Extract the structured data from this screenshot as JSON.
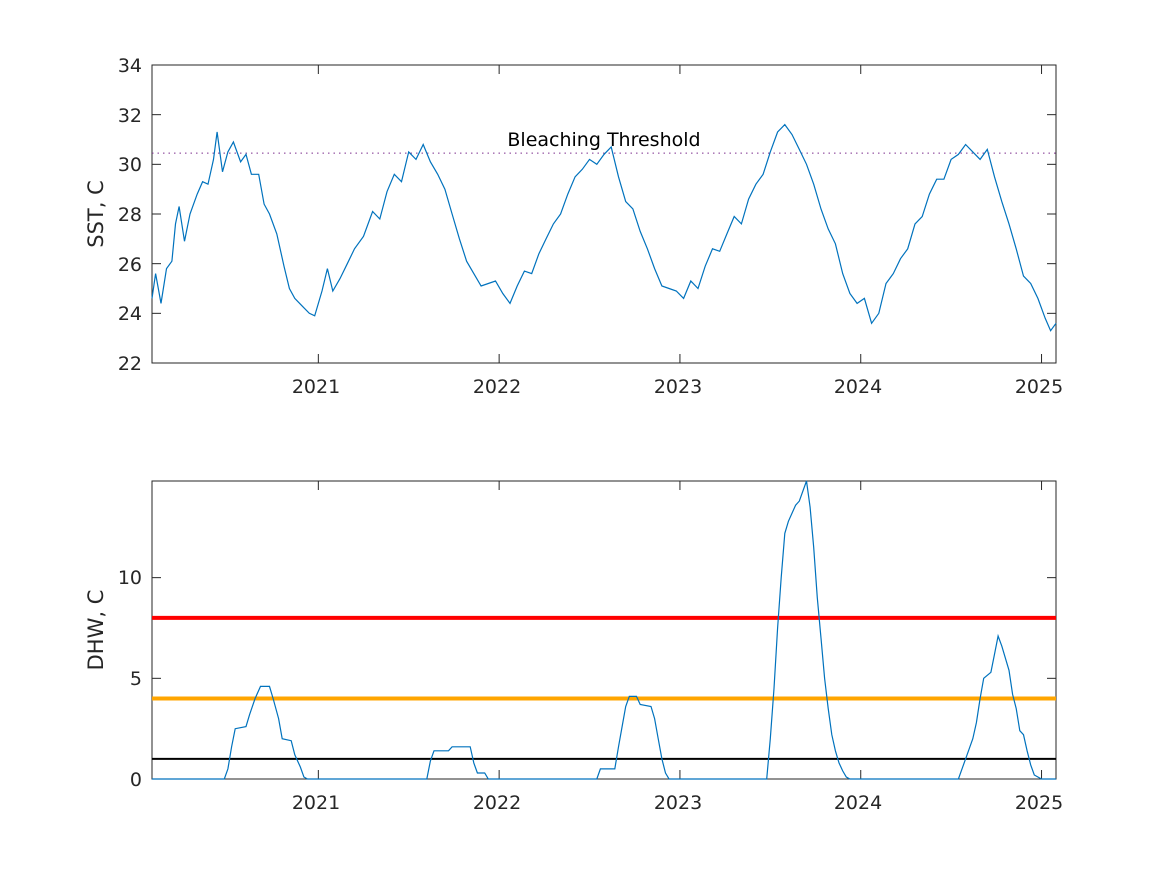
{
  "chart_data": [
    {
      "type": "line",
      "ylabel": "SST, C",
      "xlim": [
        2020.08,
        2025.08
      ],
      "ylim": [
        22,
        34
      ],
      "x_ticks": [
        2021,
        2022,
        2023,
        2024,
        2025
      ],
      "x_tick_labels": [
        "2021",
        "2022",
        "2023",
        "2024",
        "2025"
      ],
      "y_ticks": [
        22,
        24,
        26,
        28,
        30,
        32,
        34
      ],
      "y_tick_labels": [
        "22",
        "24",
        "26",
        "28",
        "30",
        "32",
        "34"
      ],
      "grid": false,
      "series": [
        {
          "color": "#0072BD",
          "points": [
            [
              2020.08,
              24.6
            ],
            [
              2020.1,
              25.6
            ],
            [
              2020.13,
              24.4
            ],
            [
              2020.16,
              25.8
            ],
            [
              2020.19,
              26.1
            ],
            [
              2020.21,
              27.6
            ],
            [
              2020.23,
              28.3
            ],
            [
              2020.26,
              26.9
            ],
            [
              2020.29,
              28.0
            ],
            [
              2020.33,
              28.8
            ],
            [
              2020.36,
              29.3
            ],
            [
              2020.39,
              29.2
            ],
            [
              2020.42,
              30.2
            ],
            [
              2020.44,
              31.3
            ],
            [
              2020.47,
              29.7
            ],
            [
              2020.5,
              30.5
            ],
            [
              2020.53,
              30.9
            ],
            [
              2020.57,
              30.1
            ],
            [
              2020.6,
              30.4
            ],
            [
              2020.63,
              29.6
            ],
            [
              2020.67,
              29.6
            ],
            [
              2020.7,
              28.4
            ],
            [
              2020.73,
              28.0
            ],
            [
              2020.77,
              27.2
            ],
            [
              2020.81,
              25.9
            ],
            [
              2020.84,
              25.0
            ],
            [
              2020.87,
              24.6
            ],
            [
              2020.91,
              24.3
            ],
            [
              2020.95,
              24.0
            ],
            [
              2020.98,
              23.9
            ],
            [
              2021.02,
              24.9
            ],
            [
              2021.05,
              25.8
            ],
            [
              2021.08,
              24.9
            ],
            [
              2021.12,
              25.4
            ],
            [
              2021.16,
              26.0
            ],
            [
              2021.2,
              26.6
            ],
            [
              2021.25,
              27.1
            ],
            [
              2021.3,
              28.1
            ],
            [
              2021.34,
              27.8
            ],
            [
              2021.38,
              28.9
            ],
            [
              2021.42,
              29.6
            ],
            [
              2021.46,
              29.3
            ],
            [
              2021.5,
              30.5
            ],
            [
              2021.54,
              30.2
            ],
            [
              2021.58,
              30.8
            ],
            [
              2021.62,
              30.1
            ],
            [
              2021.66,
              29.6
            ],
            [
              2021.7,
              29.0
            ],
            [
              2021.74,
              28.0
            ],
            [
              2021.78,
              27.0
            ],
            [
              2021.82,
              26.1
            ],
            [
              2021.86,
              25.6
            ],
            [
              2021.9,
              25.1
            ],
            [
              2021.94,
              25.2
            ],
            [
              2021.98,
              25.3
            ],
            [
              2022.02,
              24.8
            ],
            [
              2022.06,
              24.4
            ],
            [
              2022.1,
              25.1
            ],
            [
              2022.14,
              25.7
            ],
            [
              2022.18,
              25.6
            ],
            [
              2022.22,
              26.4
            ],
            [
              2022.26,
              27.0
            ],
            [
              2022.3,
              27.6
            ],
            [
              2022.34,
              28.0
            ],
            [
              2022.38,
              28.8
            ],
            [
              2022.42,
              29.5
            ],
            [
              2022.46,
              29.8
            ],
            [
              2022.5,
              30.2
            ],
            [
              2022.54,
              30.0
            ],
            [
              2022.58,
              30.4
            ],
            [
              2022.62,
              30.7
            ],
            [
              2022.66,
              29.5
            ],
            [
              2022.7,
              28.5
            ],
            [
              2022.74,
              28.2
            ],
            [
              2022.78,
              27.3
            ],
            [
              2022.82,
              26.6
            ],
            [
              2022.86,
              25.8
            ],
            [
              2022.9,
              25.1
            ],
            [
              2022.94,
              25.0
            ],
            [
              2022.98,
              24.9
            ],
            [
              2023.02,
              24.6
            ],
            [
              2023.06,
              25.3
            ],
            [
              2023.1,
              25.0
            ],
            [
              2023.14,
              25.9
            ],
            [
              2023.18,
              26.6
            ],
            [
              2023.22,
              26.5
            ],
            [
              2023.26,
              27.2
            ],
            [
              2023.3,
              27.9
            ],
            [
              2023.34,
              27.6
            ],
            [
              2023.38,
              28.6
            ],
            [
              2023.42,
              29.2
            ],
            [
              2023.46,
              29.6
            ],
            [
              2023.5,
              30.5
            ],
            [
              2023.54,
              31.3
            ],
            [
              2023.58,
              31.6
            ],
            [
              2023.62,
              31.2
            ],
            [
              2023.66,
              30.6
            ],
            [
              2023.7,
              30.0
            ],
            [
              2023.74,
              29.2
            ],
            [
              2023.78,
              28.2
            ],
            [
              2023.82,
              27.4
            ],
            [
              2023.86,
              26.8
            ],
            [
              2023.9,
              25.6
            ],
            [
              2023.94,
              24.8
            ],
            [
              2023.98,
              24.4
            ],
            [
              2024.02,
              24.6
            ],
            [
              2024.06,
              23.6
            ],
            [
              2024.1,
              24.0
            ],
            [
              2024.14,
              25.2
            ],
            [
              2024.18,
              25.6
            ],
            [
              2024.22,
              26.2
            ],
            [
              2024.26,
              26.6
            ],
            [
              2024.3,
              27.6
            ],
            [
              2024.34,
              27.9
            ],
            [
              2024.38,
              28.8
            ],
            [
              2024.42,
              29.4
            ],
            [
              2024.46,
              29.4
            ],
            [
              2024.5,
              30.2
            ],
            [
              2024.54,
              30.4
            ],
            [
              2024.58,
              30.8
            ],
            [
              2024.62,
              30.5
            ],
            [
              2024.66,
              30.2
            ],
            [
              2024.7,
              30.6
            ],
            [
              2024.74,
              29.5
            ],
            [
              2024.78,
              28.5
            ],
            [
              2024.82,
              27.6
            ],
            [
              2024.86,
              26.6
            ],
            [
              2024.9,
              25.5
            ],
            [
              2024.94,
              25.2
            ],
            [
              2024.98,
              24.6
            ],
            [
              2025.02,
              23.8
            ],
            [
              2025.05,
              23.3
            ],
            [
              2025.08,
              23.6
            ]
          ]
        }
      ],
      "reference_lines": [
        {
          "label": "Bleaching Threshold",
          "y": 30.45,
          "style": "dotted",
          "color": "#7E2F8E"
        }
      ]
    },
    {
      "type": "line",
      "ylabel": "DHW, C",
      "xlim": [
        2020.08,
        2025.08
      ],
      "ylim": [
        0,
        14.8
      ],
      "x_ticks": [
        2021,
        2022,
        2023,
        2024,
        2025
      ],
      "x_tick_labels": [
        "2021",
        "2022",
        "2023",
        "2024",
        "2025"
      ],
      "y_ticks": [
        0,
        5,
        10
      ],
      "y_tick_labels": [
        "0",
        "5",
        "10"
      ],
      "grid": false,
      "series": [
        {
          "color": "#0072BD",
          "points": [
            [
              2020.08,
              0
            ],
            [
              2020.48,
              0
            ],
            [
              2020.5,
              0.5
            ],
            [
              2020.52,
              1.6
            ],
            [
              2020.54,
              2.5
            ],
            [
              2020.6,
              2.6
            ],
            [
              2020.62,
              3.2
            ],
            [
              2020.65,
              4.0
            ],
            [
              2020.68,
              4.6
            ],
            [
              2020.73,
              4.6
            ],
            [
              2020.75,
              4.0
            ],
            [
              2020.78,
              3.0
            ],
            [
              2020.8,
              2.0
            ],
            [
              2020.85,
              1.9
            ],
            [
              2020.87,
              1.2
            ],
            [
              2020.9,
              0.6
            ],
            [
              2020.92,
              0.1
            ],
            [
              2020.94,
              0
            ],
            [
              2021.6,
              0
            ],
            [
              2021.62,
              0.9
            ],
            [
              2021.64,
              1.4
            ],
            [
              2021.72,
              1.4
            ],
            [
              2021.74,
              1.6
            ],
            [
              2021.84,
              1.6
            ],
            [
              2021.86,
              0.8
            ],
            [
              2021.88,
              0.3
            ],
            [
              2021.92,
              0.3
            ],
            [
              2021.94,
              0
            ],
            [
              2022.54,
              0
            ],
            [
              2022.56,
              0.5
            ],
            [
              2022.64,
              0.5
            ],
            [
              2022.66,
              1.6
            ],
            [
              2022.68,
              2.6
            ],
            [
              2022.7,
              3.6
            ],
            [
              2022.72,
              4.1
            ],
            [
              2022.76,
              4.1
            ],
            [
              2022.78,
              3.7
            ],
            [
              2022.84,
              3.6
            ],
            [
              2022.86,
              3.0
            ],
            [
              2022.88,
              2.0
            ],
            [
              2022.9,
              1.0
            ],
            [
              2022.92,
              0.3
            ],
            [
              2022.94,
              0
            ],
            [
              2023.48,
              0
            ],
            [
              2023.5,
              2.0
            ],
            [
              2023.52,
              4.5
            ],
            [
              2023.54,
              7.5
            ],
            [
              2023.56,
              10.0
            ],
            [
              2023.58,
              12.2
            ],
            [
              2023.6,
              12.8
            ],
            [
              2023.62,
              13.2
            ],
            [
              2023.64,
              13.6
            ],
            [
              2023.66,
              13.8
            ],
            [
              2023.7,
              14.8
            ],
            [
              2023.72,
              13.5
            ],
            [
              2023.74,
              11.5
            ],
            [
              2023.76,
              9.0
            ],
            [
              2023.78,
              7.0
            ],
            [
              2023.8,
              5.0
            ],
            [
              2023.82,
              3.5
            ],
            [
              2023.84,
              2.2
            ],
            [
              2023.86,
              1.4
            ],
            [
              2023.88,
              0.8
            ],
            [
              2023.9,
              0.4
            ],
            [
              2023.92,
              0.1
            ],
            [
              2023.94,
              0
            ],
            [
              2024.54,
              0
            ],
            [
              2024.56,
              0.5
            ],
            [
              2024.58,
              1.0
            ],
            [
              2024.6,
              1.5
            ],
            [
              2024.62,
              2.0
            ],
            [
              2024.64,
              2.8
            ],
            [
              2024.66,
              4.0
            ],
            [
              2024.68,
              5.0
            ],
            [
              2024.72,
              5.3
            ],
            [
              2024.74,
              6.2
            ],
            [
              2024.76,
              7.1
            ],
            [
              2024.78,
              6.6
            ],
            [
              2024.8,
              6.0
            ],
            [
              2024.82,
              5.4
            ],
            [
              2024.84,
              4.2
            ],
            [
              2024.86,
              3.5
            ],
            [
              2024.88,
              2.4
            ],
            [
              2024.9,
              2.2
            ],
            [
              2024.92,
              1.4
            ],
            [
              2024.94,
              0.7
            ],
            [
              2024.96,
              0.2
            ],
            [
              2024.98,
              0.1
            ],
            [
              2025.0,
              0
            ],
            [
              2025.08,
              0
            ]
          ]
        }
      ],
      "reference_lines": [
        {
          "y": 8,
          "color": "#FF0000",
          "style": "solid",
          "width": 4
        },
        {
          "y": 4,
          "color": "#FFA500",
          "style": "solid",
          "width": 4
        },
        {
          "y": 1,
          "color": "#000000",
          "style": "solid",
          "width": 2
        }
      ]
    }
  ],
  "panels": {
    "sst": {
      "ylabel": "SST, C",
      "annotation": "Bleaching Threshold",
      "x_tick_labels": [
        "2021",
        "2022",
        "2023",
        "2024",
        "2025"
      ],
      "y_tick_labels": [
        "22",
        "24",
        "26",
        "28",
        "30",
        "32",
        "34"
      ]
    },
    "dhw": {
      "ylabel": "DHW, C",
      "x_tick_labels": [
        "2021",
        "2022",
        "2023",
        "2024",
        "2025"
      ],
      "y_tick_labels": [
        "0",
        "5",
        "10"
      ]
    }
  }
}
